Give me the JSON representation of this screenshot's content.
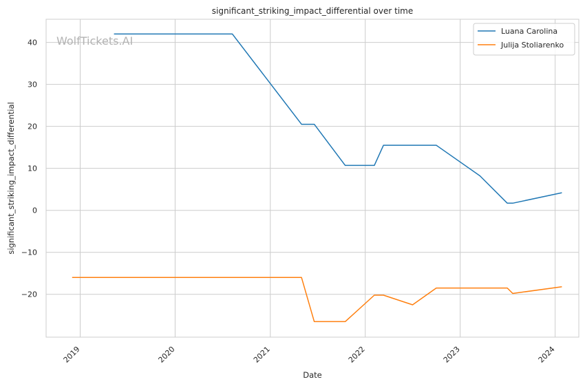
{
  "chart_data": {
    "type": "line",
    "title": "significant_striking_impact_differential over time",
    "xlabel": "Date",
    "ylabel": "significant_striking_impact_differential",
    "watermark": "WolfTickets.AI",
    "x_ticks": [
      "2019",
      "2020",
      "2021",
      "2022",
      "2023",
      "2024"
    ],
    "y_ticks": [
      40,
      30,
      20,
      10,
      0,
      -10,
      -20
    ],
    "y_tick_labels": [
      "40",
      "30",
      "20",
      "10",
      "0",
      "−10",
      "−20"
    ],
    "xlim": [
      "2018-08-23",
      "2024-04-01"
    ],
    "ylim": [
      -30.2,
      45.5
    ],
    "grid": true,
    "legend_position": "top-right",
    "series": [
      {
        "name": "Luana Carolina",
        "color": "#1f77b4",
        "points": [
          [
            "2019-05-11",
            42.0
          ],
          [
            "2020-08-08",
            42.0
          ],
          [
            "2021-05-01",
            20.5
          ],
          [
            "2021-06-19",
            20.5
          ],
          [
            "2021-10-16",
            10.7
          ],
          [
            "2022-02-05",
            10.7
          ],
          [
            "2022-03-12",
            15.5
          ],
          [
            "2022-10-01",
            15.5
          ],
          [
            "2023-03-18",
            8.2
          ],
          [
            "2023-07-01",
            1.7
          ],
          [
            "2023-07-22",
            1.7
          ],
          [
            "2024-01-27",
            4.2
          ]
        ]
      },
      {
        "name": "Julija Stoliarenko",
        "color": "#ff7f0e",
        "points": [
          [
            "2018-12-01",
            -16.0
          ],
          [
            "2021-05-01",
            -16.0
          ],
          [
            "2021-06-19",
            -26.5
          ],
          [
            "2021-10-16",
            -26.5
          ],
          [
            "2022-02-05",
            -20.2
          ],
          [
            "2022-03-12",
            -20.2
          ],
          [
            "2022-07-02",
            -22.5
          ],
          [
            "2022-10-01",
            -18.5
          ],
          [
            "2023-07-01",
            -18.5
          ],
          [
            "2023-07-22",
            -19.8
          ],
          [
            "2024-01-27",
            -18.2
          ]
        ]
      }
    ]
  }
}
